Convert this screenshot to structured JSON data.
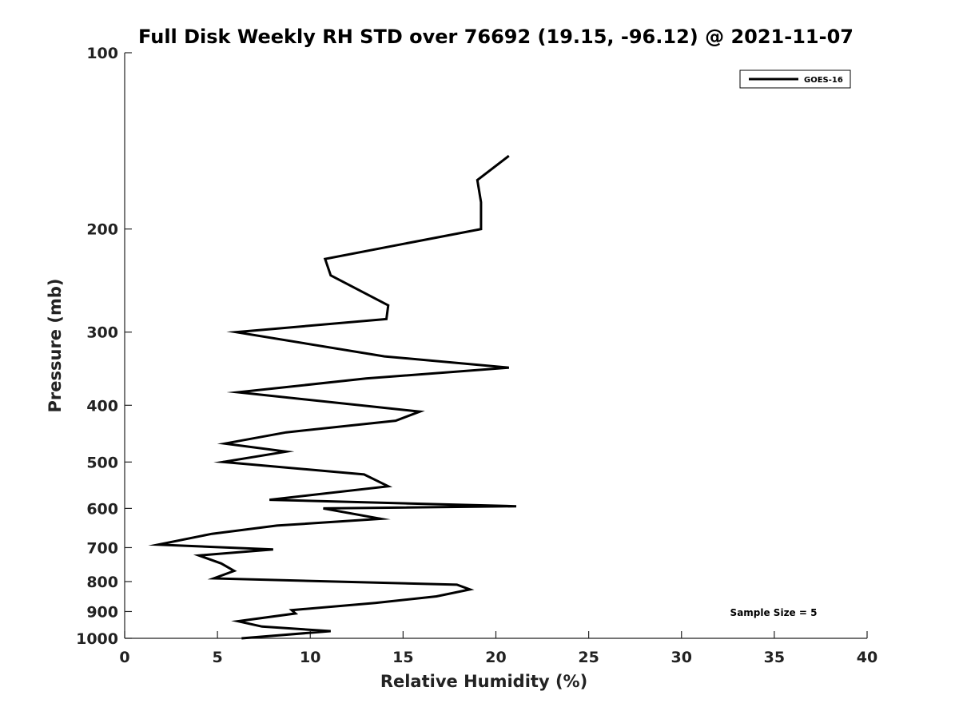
{
  "chart_data": {
    "type": "line",
    "title": "Full Disk Weekly RH STD over 76692 (19.15, -96.12) @ 2021-11-07",
    "xlabel": "Relative Humidity (%)",
    "ylabel": "Pressure (mb)",
    "xlim": [
      0,
      40
    ],
    "ylim": [
      100,
      1000
    ],
    "y_scale": "log",
    "y_reversed": true,
    "xticks": [
      0,
      5,
      10,
      15,
      20,
      25,
      30,
      35,
      40
    ],
    "yticks": [
      100,
      200,
      300,
      400,
      500,
      600,
      700,
      800,
      900,
      1000
    ],
    "grid": false,
    "legend_position": "top-right",
    "annotation": "Sample Size = 5",
    "series": [
      {
        "name": "GOES-16",
        "color": "#000000",
        "x": [
          20.7,
          19.0,
          19.2,
          19.2,
          10.8,
          11.1,
          14.2,
          14.1,
          6.0,
          14.0,
          20.7,
          13.0,
          6.1,
          15.9,
          14.6,
          8.7,
          5.4,
          8.7,
          5.3,
          12.9,
          14.2,
          7.8,
          21.1,
          10.7,
          13.8,
          8.2,
          4.7,
          1.8,
          8.0,
          4.0,
          5.2,
          5.9,
          4.8,
          17.9,
          18.6,
          16.8,
          13.5,
          9.0,
          9.2,
          6.1,
          7.4,
          11.1,
          6.3
        ],
        "y": [
          150,
          165,
          180,
          200,
          225,
          240,
          270,
          285,
          300,
          330,
          345,
          360,
          380,
          410,
          425,
          445,
          465,
          480,
          500,
          525,
          550,
          580,
          595,
          600,
          625,
          642,
          663,
          692,
          705,
          722,
          745,
          767,
          790,
          810,
          825,
          848,
          870,
          895,
          907,
          935,
          955,
          972,
          1000
        ]
      }
    ]
  }
}
